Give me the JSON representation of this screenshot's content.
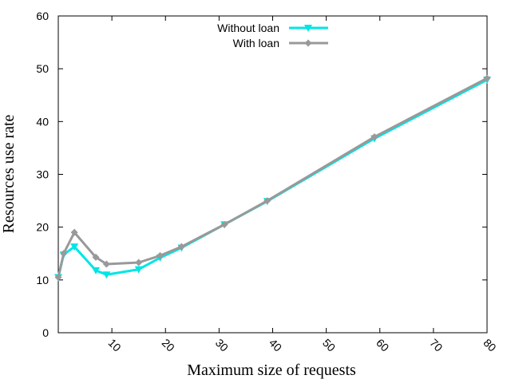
{
  "chart_data": {
    "type": "line",
    "xlabel": "Maximum size of requests",
    "ylabel": "Resources use rate",
    "xlim": [
      0,
      80
    ],
    "ylim": [
      0,
      60
    ],
    "xticks": [
      10,
      20,
      30,
      40,
      50,
      60,
      70,
      80
    ],
    "yticks": [
      0,
      10,
      20,
      30,
      40,
      50,
      60
    ],
    "grid": false,
    "legend_position": "top-center",
    "series": [
      {
        "name": "Without loan",
        "color": "#00e5e5",
        "marker": "triangle-down",
        "x": [
          0,
          1,
          3,
          7,
          9,
          15,
          19,
          23,
          31,
          39,
          59,
          80
        ],
        "y": [
          10.5,
          14.8,
          16.3,
          11.8,
          11.0,
          12.0,
          14.2,
          16.1,
          20.5,
          24.9,
          36.8,
          47.9
        ]
      },
      {
        "name": "With loan",
        "color": "#999999",
        "marker": "diamond",
        "x": [
          0,
          1,
          3,
          7,
          9,
          15,
          19,
          23,
          31,
          39,
          59,
          80
        ],
        "y": [
          10.5,
          15.0,
          19.0,
          14.3,
          13.0,
          13.3,
          14.6,
          16.3,
          20.5,
          25.0,
          37.1,
          48.2
        ]
      }
    ]
  }
}
